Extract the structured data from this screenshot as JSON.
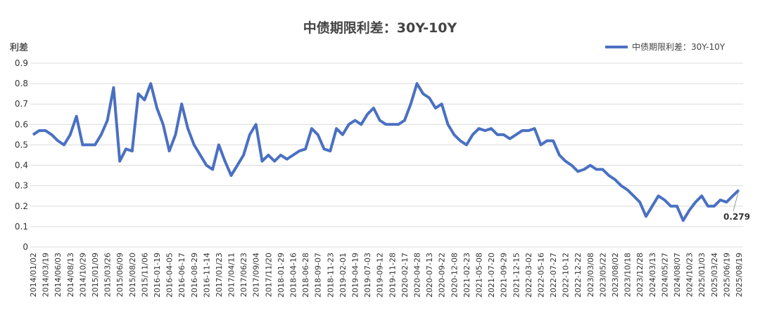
{
  "chart_data": {
    "type": "line",
    "title": "中债期限利差：30Y-10Y",
    "y_label": "利差",
    "categories": [
      "2014/01/02",
      null,
      "2014/03/19",
      null,
      "2014/06/03",
      null,
      "2014/08/13",
      null,
      "2014/10/29",
      null,
      "2015/01/09",
      null,
      "2015/03/26",
      null,
      "2015/06/09",
      null,
      "2015/08/20",
      null,
      "2015/11/06",
      null,
      "2016-01-19",
      null,
      "2016-04-05",
      null,
      "2016-06-17",
      null,
      "2016-08-29",
      null,
      "2016-11-14",
      null,
      "2017/01/23",
      null,
      "2017/04/11",
      null,
      "2017/06/23",
      null,
      "2017/09/04",
      null,
      "2017/11/20",
      null,
      "2018-01-29",
      null,
      "2018-04-16",
      null,
      "2018-06-28",
      null,
      "2018-09-07",
      null,
      "2018-11-23",
      null,
      "2019-02-01",
      null,
      "2019-04-19",
      null,
      "2019-07-03",
      null,
      "2019-09-12",
      null,
      "2019-11-28",
      null,
      "2020-02-17",
      null,
      "2020-04-28",
      null,
      "2020-07-13",
      null,
      "2020-09-22",
      null,
      "2020-12-08",
      null,
      "2021-02-23",
      null,
      "2021-05-08",
      null,
      "2021-07-20",
      null,
      "2021-09-29",
      null,
      "2021-12-15",
      null,
      "2022-03-02",
      null,
      "2022-05-16",
      null,
      "2022-07-27",
      null,
      "2022-10-12",
      null,
      "2022-12-22",
      null,
      "2023/03/08",
      null,
      "2023/05/22",
      null,
      "2023/08/02",
      null,
      "2023/10/18",
      null,
      "2023/12/28",
      null,
      "2024/03/13",
      null,
      "2024/05/27",
      null,
      "2024/08/07",
      null,
      "2024/10/23",
      null,
      "2025/01/03",
      null,
      "2025/03/24",
      null,
      "2025/06/19",
      null,
      "2025/08/19"
    ],
    "series": [
      {
        "name": "中债期限利差：30Y-10Y",
        "color": "#4a70c2",
        "values": [
          0.55,
          0.57,
          0.57,
          0.55,
          0.52,
          0.5,
          0.55,
          0.64,
          0.5,
          0.5,
          0.5,
          0.55,
          0.62,
          0.78,
          0.42,
          0.48,
          0.47,
          0.75,
          0.72,
          0.8,
          0.68,
          0.6,
          0.47,
          0.55,
          0.7,
          0.58,
          0.5,
          0.45,
          0.4,
          0.38,
          0.5,
          0.42,
          0.35,
          0.4,
          0.45,
          0.55,
          0.6,
          0.42,
          0.45,
          0.42,
          0.45,
          0.43,
          0.45,
          0.47,
          0.48,
          0.58,
          0.55,
          0.48,
          0.47,
          0.58,
          0.55,
          0.6,
          0.62,
          0.6,
          0.65,
          0.68,
          0.62,
          0.6,
          0.6,
          0.6,
          0.62,
          0.7,
          0.8,
          0.75,
          0.73,
          0.68,
          0.7,
          0.6,
          0.55,
          0.52,
          0.5,
          0.55,
          0.58,
          0.57,
          0.58,
          0.55,
          0.55,
          0.53,
          0.55,
          0.57,
          0.57,
          0.58,
          0.5,
          0.52,
          0.52,
          0.45,
          0.42,
          0.4,
          0.37,
          0.38,
          0.4,
          0.38,
          0.38,
          0.35,
          0.33,
          0.3,
          0.28,
          0.25,
          0.22,
          0.15,
          0.2,
          0.25,
          0.23,
          0.2,
          0.2,
          0.13,
          0.18,
          0.22,
          0.25,
          0.2,
          0.2,
          0.23,
          0.22,
          0.25,
          0.279
        ]
      }
    ],
    "ylim": [
      0,
      0.9
    ],
    "yticks": [
      0,
      0.1,
      0.2,
      0.3,
      0.4,
      0.5,
      0.6,
      0.7,
      0.8,
      0.9
    ],
    "grid": true,
    "legend": "top-right"
  }
}
